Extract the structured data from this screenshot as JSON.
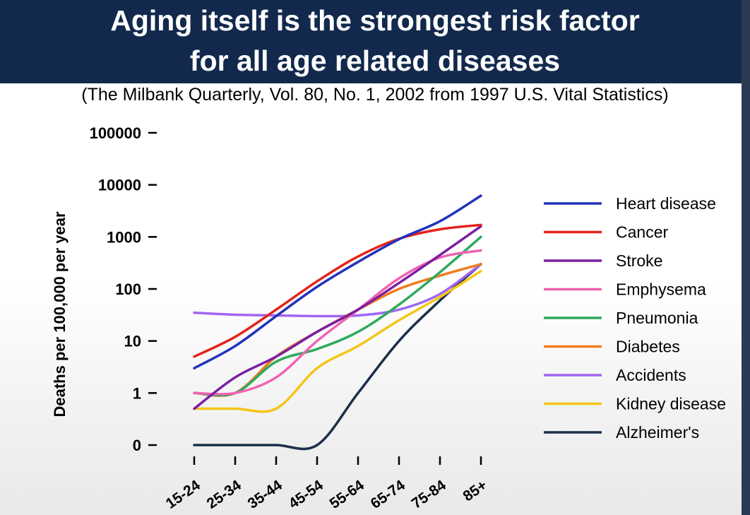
{
  "header": {
    "title_line1": "Aging itself is the strongest risk factor",
    "title_line2": "for all age related diseases",
    "subtitle": "(The Milbank Quarterly, Vol. 80, No. 1, 2002 from 1997 U.S. Vital Statistics)"
  },
  "chart_data": {
    "type": "line",
    "ylabel": "Deaths per 100,000 per year",
    "yscale": "log",
    "ylim": [
      0.1,
      100000
    ],
    "ytick_values": [
      0.1,
      1,
      10,
      100,
      1000,
      10000,
      100000
    ],
    "ytick_labels": [
      "0",
      "1",
      "10",
      "100",
      "1000",
      "10000",
      "100000"
    ],
    "categories": [
      "15-24",
      "25-34",
      "35-44",
      "45-54",
      "55-64",
      "65-74",
      "75-84",
      "85+"
    ],
    "grid": false,
    "legend_position": "right",
    "series": [
      {
        "name": "Heart disease",
        "color": "#2233bb",
        "values": [
          3,
          8,
          30,
          110,
          330,
          900,
          2000,
          6200
        ]
      },
      {
        "name": "Cancer",
        "color": "#e3241b",
        "values": [
          5,
          12,
          40,
          140,
          420,
          920,
          1400,
          1700
        ]
      },
      {
        "name": "Stroke",
        "color": "#7a1fa2",
        "values": [
          0.5,
          2,
          5,
          15,
          40,
          130,
          450,
          1600
        ]
      },
      {
        "name": "Emphysema",
        "color": "#f062b0",
        "values": [
          1,
          1,
          2,
          10,
          40,
          160,
          400,
          550
        ]
      },
      {
        "name": "Pneumonia",
        "color": "#2eaa5c",
        "values": [
          1,
          1,
          4,
          7,
          15,
          50,
          210,
          1000
        ]
      },
      {
        "name": "Diabetes",
        "color": "#f07c1e",
        "values": [
          1,
          1,
          5,
          15,
          40,
          100,
          180,
          300
        ]
      },
      {
        "name": "Accidents",
        "color": "#a066f0",
        "values": [
          35,
          32,
          31,
          30,
          31,
          40,
          80,
          300
        ]
      },
      {
        "name": "Kidney disease",
        "color": "#f5c518",
        "values": [
          0.5,
          0.5,
          0.5,
          3,
          8,
          25,
          70,
          220
        ]
      },
      {
        "name": "Alzheimer's",
        "color": "#1c2f4a",
        "values": [
          0.1,
          0.1,
          0.1,
          0.1,
          1,
          10,
          60,
          300
        ]
      }
    ]
  }
}
